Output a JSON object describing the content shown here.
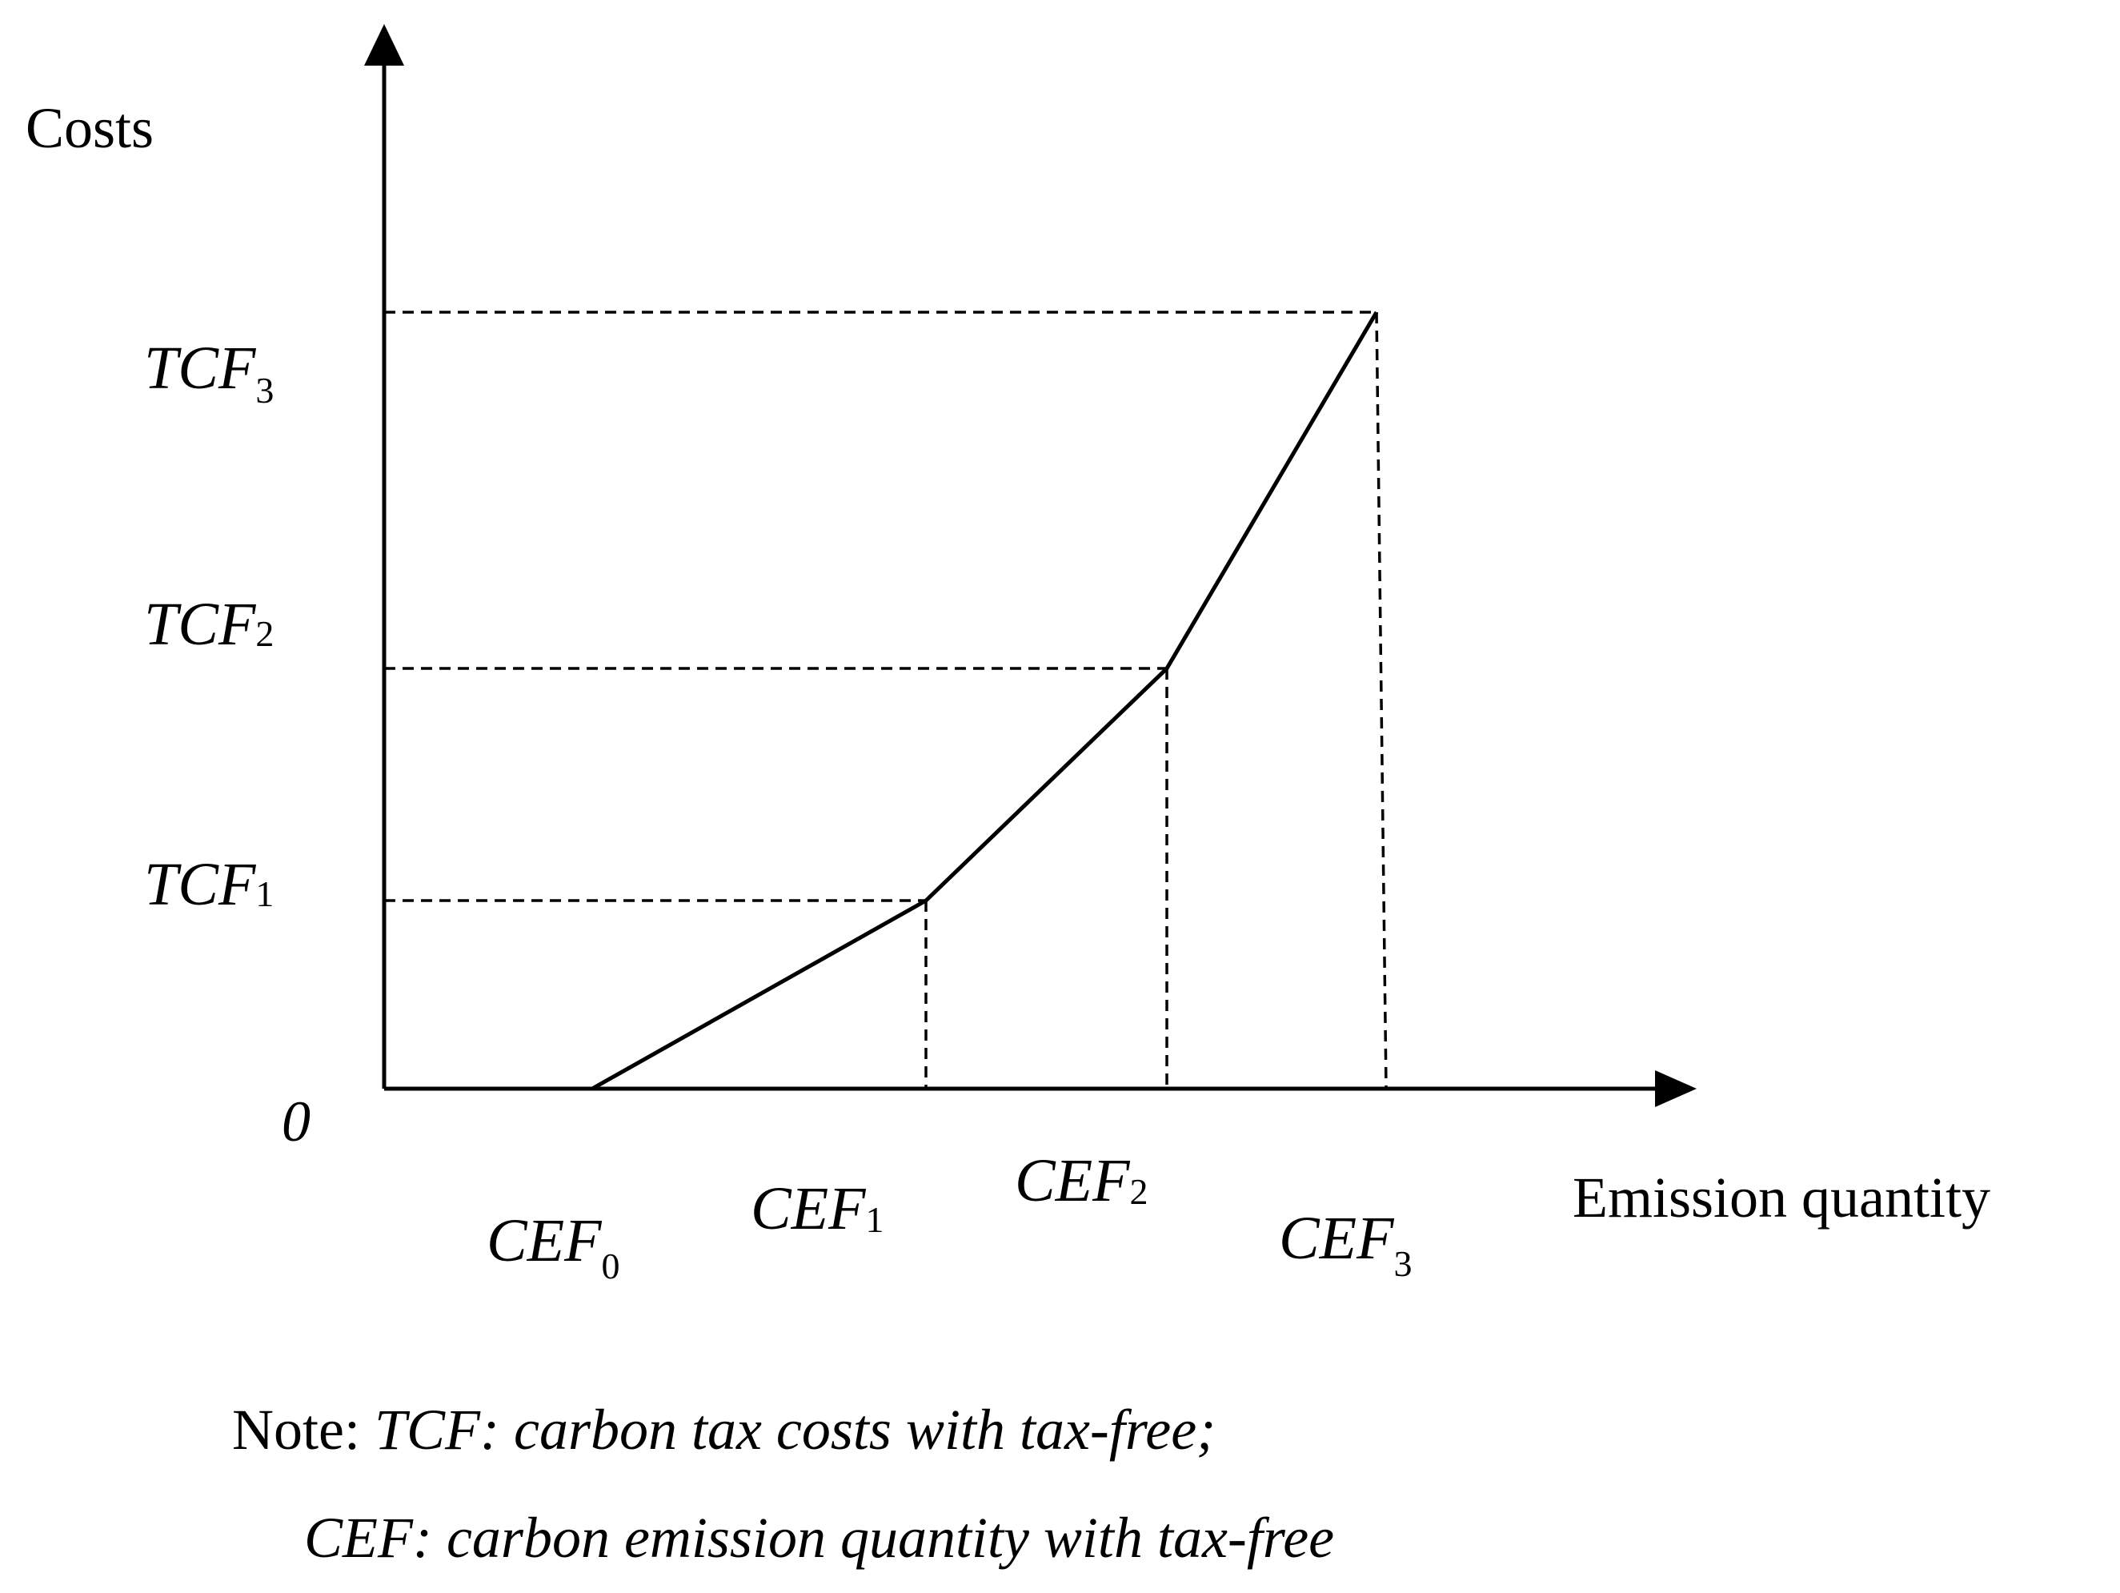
{
  "axes": {
    "y_label": "Costs",
    "x_label": "Emission quantity",
    "origin": "0"
  },
  "y_ticks": [
    {
      "base": "TCF",
      "sub": "1"
    },
    {
      "base": "TCF",
      "sub": "2"
    },
    {
      "base": "TCF",
      "sub": "3"
    }
  ],
  "x_ticks": [
    {
      "base": "CEF",
      "sub": "0"
    },
    {
      "base": "CEF",
      "sub": "1"
    },
    {
      "base": "CEF",
      "sub": "2"
    },
    {
      "base": "CEF",
      "sub": "3"
    }
  ],
  "curve": {
    "description_points": [
      "0",
      "CEF0",
      "CEF1/TCF1",
      "CEF2/TCF2",
      "CEF3/TCF3"
    ]
  },
  "note": {
    "prefix": "Note: ",
    "line1": "TCF: carbon tax costs with tax-free;",
    "line2": "CEF: carbon emission quantity with tax-free"
  },
  "colors": {
    "line": "#000000",
    "background": "#ffffff"
  }
}
